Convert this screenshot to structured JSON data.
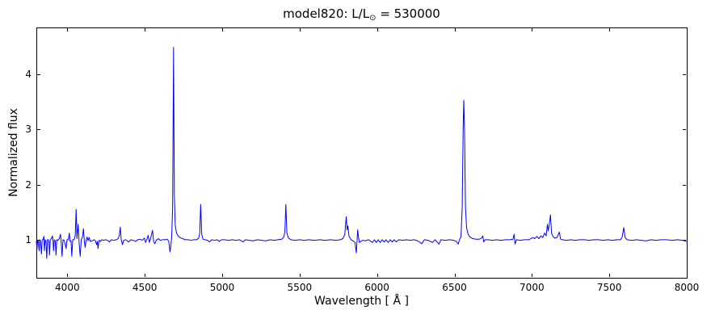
{
  "title_parts": {
    "prefix": "model820: L/L",
    "sun_symbol": "⊙",
    "suffix": " = 530000"
  },
  "chart_data": {
    "type": "line",
    "title": "model820: L/L⊙ = 530000",
    "xlabel": "Wavelength [ Å ]",
    "ylabel": "Normalized flux",
    "xlim": [
      3800,
      8000
    ],
    "ylim": [
      0.31,
      4.85
    ],
    "xticks": [
      4000,
      4500,
      5000,
      5500,
      6000,
      6500,
      7000,
      7500,
      8000
    ],
    "yticks": [
      1,
      2,
      3,
      4
    ],
    "grid": false,
    "legend": null,
    "line_color": "#0000ff",
    "axis_color": "#000000",
    "background_color": "#ffffff",
    "peaks": [
      {
        "wavelength": 4057,
        "flux": 1.55
      },
      {
        "wavelength": 4342,
        "flux": 1.23
      },
      {
        "wavelength": 4550,
        "flux": 1.17
      },
      {
        "wavelength": 4686,
        "flux": 4.49
      },
      {
        "wavelength": 4861,
        "flux": 1.64
      },
      {
        "wavelength": 5411,
        "flux": 1.64
      },
      {
        "wavelength": 5801,
        "flux": 1.42
      },
      {
        "wavelength": 5876,
        "flux": 1.18
      },
      {
        "wavelength": 6560,
        "flux": 3.53
      },
      {
        "wavelength": 6683,
        "flux": 1.07
      },
      {
        "wavelength": 7120,
        "flux": 1.45
      },
      {
        "wavelength": 7177,
        "flux": 1.14
      },
      {
        "wavelength": 7593,
        "flux": 1.22
      }
    ],
    "series": [
      {
        "name": "spectrum",
        "points": [
          [
            3800,
            0.97
          ],
          [
            3804,
            0.82
          ],
          [
            3808,
            0.98
          ],
          [
            3813,
            0.97
          ],
          [
            3818,
            0.8
          ],
          [
            3822,
            1.0
          ],
          [
            3827,
            0.97
          ],
          [
            3833,
            0.74
          ],
          [
            3838,
            1.0
          ],
          [
            3843,
            1.0
          ],
          [
            3849,
            1.06
          ],
          [
            3852,
            0.8
          ],
          [
            3857,
            1.0
          ],
          [
            3862,
            0.98
          ],
          [
            3867,
            0.66
          ],
          [
            3872,
            1.0
          ],
          [
            3877,
            1.0
          ],
          [
            3881,
            0.97
          ],
          [
            3885,
            0.72
          ],
          [
            3890,
            1.0
          ],
          [
            3897,
            1.02
          ],
          [
            3904,
            1.07
          ],
          [
            3908,
            0.97
          ],
          [
            3911,
            0.8
          ],
          [
            3916,
            1.0
          ],
          [
            3922,
            0.98
          ],
          [
            3927,
            0.72
          ],
          [
            3932,
            1.0
          ],
          [
            3940,
            0.99
          ],
          [
            3948,
            1.02
          ],
          [
            3956,
            1.1
          ],
          [
            3960,
            0.97
          ],
          [
            3966,
            0.7
          ],
          [
            3972,
            1.0
          ],
          [
            3980,
            0.99
          ],
          [
            3992,
            0.84
          ],
          [
            3998,
            1.0
          ],
          [
            4006,
            1.0
          ],
          [
            4013,
            1.12
          ],
          [
            4018,
            0.97
          ],
          [
            4024,
            0.98
          ],
          [
            4029,
            0.7
          ],
          [
            4035,
            1.0
          ],
          [
            4044,
            1.0
          ],
          [
            4051,
            1.08
          ],
          [
            4057,
            1.55
          ],
          [
            4062,
            1.02
          ],
          [
            4070,
            1.28
          ],
          [
            4076,
            0.95
          ],
          [
            4083,
            0.7
          ],
          [
            4090,
            1.0
          ],
          [
            4098,
            1.05
          ],
          [
            4104,
            1.2
          ],
          [
            4110,
            0.97
          ],
          [
            4115,
            0.86
          ],
          [
            4122,
            1.0
          ],
          [
            4128,
            1.05
          ],
          [
            4134,
            0.98
          ],
          [
            4141,
            1.04
          ],
          [
            4148,
            0.97
          ],
          [
            4160,
            0.98
          ],
          [
            4172,
            1.0
          ],
          [
            4182,
            0.98
          ],
          [
            4189,
            0.91
          ],
          [
            4194,
            0.97
          ],
          [
            4198,
            0.84
          ],
          [
            4205,
            0.99
          ],
          [
            4215,
            0.97
          ],
          [
            4222,
            1.0
          ],
          [
            4235,
            0.99
          ],
          [
            4248,
            1.0
          ],
          [
            4260,
            0.99
          ],
          [
            4272,
            0.96
          ],
          [
            4284,
            1.0
          ],
          [
            4300,
            0.99
          ],
          [
            4315,
            1.0
          ],
          [
            4328,
            1.02
          ],
          [
            4336,
            1.08
          ],
          [
            4342,
            1.23
          ],
          [
            4348,
            1.0
          ],
          [
            4356,
            0.91
          ],
          [
            4364,
            0.99
          ],
          [
            4378,
            1.0
          ],
          [
            4396,
            0.96
          ],
          [
            4410,
            1.0
          ],
          [
            4425,
            0.99
          ],
          [
            4441,
            0.97
          ],
          [
            4455,
            1.0
          ],
          [
            4470,
            1.01
          ],
          [
            4484,
            0.99
          ],
          [
            4498,
            1.03
          ],
          [
            4505,
            0.95
          ],
          [
            4513,
            1.0
          ],
          [
            4522,
            1.08
          ],
          [
            4530,
            0.95
          ],
          [
            4540,
            1.05
          ],
          [
            4550,
            1.17
          ],
          [
            4558,
            0.96
          ],
          [
            4565,
            0.93
          ],
          [
            4575,
            0.99
          ],
          [
            4588,
            1.02
          ],
          [
            4600,
            0.99
          ],
          [
            4615,
            1.0
          ],
          [
            4630,
            1.0
          ],
          [
            4645,
            1.01
          ],
          [
            4655,
            0.97
          ],
          [
            4663,
            0.78
          ],
          [
            4668,
            0.88
          ],
          [
            4674,
            1.05
          ],
          [
            4680,
            1.6
          ],
          [
            4686,
            4.49
          ],
          [
            4691,
            1.8
          ],
          [
            4697,
            1.25
          ],
          [
            4705,
            1.12
          ],
          [
            4715,
            1.07
          ],
          [
            4728,
            1.04
          ],
          [
            4744,
            1.02
          ],
          [
            4762,
            1.0
          ],
          [
            4780,
            1.0
          ],
          [
            4800,
            0.99
          ],
          [
            4818,
            1.0
          ],
          [
            4836,
            1.0
          ],
          [
            4848,
            1.03
          ],
          [
            4855,
            1.12
          ],
          [
            4861,
            1.64
          ],
          [
            4868,
            1.1
          ],
          [
            4876,
            1.01
          ],
          [
            4890,
            1.0
          ],
          [
            4905,
            0.99
          ],
          [
            4918,
            0.96
          ],
          [
            4932,
            1.0
          ],
          [
            4950,
            0.99
          ],
          [
            4968,
            1.0
          ],
          [
            4980,
            0.97
          ],
          [
            4995,
            1.0
          ],
          [
            5015,
            1.0
          ],
          [
            5040,
            0.99
          ],
          [
            5065,
            1.0
          ],
          [
            5090,
            0.99
          ],
          [
            5112,
            1.0
          ],
          [
            5135,
            0.96
          ],
          [
            5150,
            1.0
          ],
          [
            5175,
            0.99
          ],
          [
            5200,
            0.98
          ],
          [
            5228,
            1.0
          ],
          [
            5255,
            0.99
          ],
          [
            5282,
            0.98
          ],
          [
            5310,
            1.0
          ],
          [
            5335,
            0.99
          ],
          [
            5360,
            1.0
          ],
          [
            5385,
            1.01
          ],
          [
            5398,
            1.05
          ],
          [
            5405,
            1.15
          ],
          [
            5411,
            1.64
          ],
          [
            5418,
            1.12
          ],
          [
            5428,
            1.03
          ],
          [
            5445,
            1.0
          ],
          [
            5470,
            0.99
          ],
          [
            5500,
            1.0
          ],
          [
            5530,
            0.99
          ],
          [
            5560,
            1.0
          ],
          [
            5595,
            0.99
          ],
          [
            5630,
            1.0
          ],
          [
            5665,
            0.99
          ],
          [
            5700,
            1.0
          ],
          [
            5735,
            0.99
          ],
          [
            5762,
            1.0
          ],
          [
            5780,
            1.02
          ],
          [
            5792,
            1.1
          ],
          [
            5801,
            1.42
          ],
          [
            5807,
            1.18
          ],
          [
            5812,
            1.25
          ],
          [
            5819,
            1.06
          ],
          [
            5832,
            1.0
          ],
          [
            5845,
            0.98
          ],
          [
            5858,
            0.95
          ],
          [
            5866,
            0.76
          ],
          [
            5871,
            0.98
          ],
          [
            5875,
            1.18
          ],
          [
            5880,
            1.05
          ],
          [
            5886,
            0.95
          ],
          [
            5895,
            0.97
          ],
          [
            5908,
            0.99
          ],
          [
            5925,
            0.98
          ],
          [
            5945,
            1.0
          ],
          [
            5970,
            0.95
          ],
          [
            5983,
            1.0
          ],
          [
            5995,
            0.95
          ],
          [
            6008,
            1.0
          ],
          [
            6020,
            0.95
          ],
          [
            6033,
            1.0
          ],
          [
            6046,
            0.96
          ],
          [
            6058,
            1.0
          ],
          [
            6072,
            0.95
          ],
          [
            6085,
            1.0
          ],
          [
            6098,
            0.96
          ],
          [
            6110,
            1.0
          ],
          [
            6124,
            0.96
          ],
          [
            6140,
            1.0
          ],
          [
            6165,
            0.99
          ],
          [
            6190,
            1.0
          ],
          [
            6215,
            0.99
          ],
          [
            6240,
            1.0
          ],
          [
            6262,
            0.98
          ],
          [
            6290,
            0.93
          ],
          [
            6305,
            1.0
          ],
          [
            6330,
            0.99
          ],
          [
            6357,
            0.95
          ],
          [
            6375,
            1.0
          ],
          [
            6400,
            0.92
          ],
          [
            6412,
            1.0
          ],
          [
            6440,
            0.99
          ],
          [
            6468,
            1.0
          ],
          [
            6495,
            0.99
          ],
          [
            6512,
            0.97
          ],
          [
            6524,
            0.92
          ],
          [
            6532,
            1.0
          ],
          [
            6542,
            1.05
          ],
          [
            6550,
            1.6
          ],
          [
            6556,
            3.0
          ],
          [
            6560,
            3.53
          ],
          [
            6565,
            3.0
          ],
          [
            6571,
            1.6
          ],
          [
            6578,
            1.22
          ],
          [
            6588,
            1.1
          ],
          [
            6600,
            1.05
          ],
          [
            6618,
            1.02
          ],
          [
            6640,
            1.01
          ],
          [
            6660,
            1.01
          ],
          [
            6675,
            1.03
          ],
          [
            6683,
            1.07
          ],
          [
            6689,
            0.96
          ],
          [
            6698,
            1.0
          ],
          [
            6720,
            1.0
          ],
          [
            6745,
            0.99
          ],
          [
            6772,
            1.0
          ],
          [
            6800,
            0.99
          ],
          [
            6830,
            1.0
          ],
          [
            6858,
            1.0
          ],
          [
            6878,
            1.01
          ],
          [
            6885,
            1.1
          ],
          [
            6891,
            0.92
          ],
          [
            6900,
            1.0
          ],
          [
            6925,
            0.99
          ],
          [
            6952,
            1.0
          ],
          [
            6980,
            1.0
          ],
          [
            7005,
            1.04
          ],
          [
            7018,
            1.02
          ],
          [
            7032,
            1.06
          ],
          [
            7045,
            1.02
          ],
          [
            7058,
            1.07
          ],
          [
            7070,
            1.04
          ],
          [
            7082,
            1.12
          ],
          [
            7092,
            1.07
          ],
          [
            7100,
            1.28
          ],
          [
            7106,
            1.16
          ],
          [
            7113,
            1.3
          ],
          [
            7120,
            1.45
          ],
          [
            7127,
            1.12
          ],
          [
            7136,
            1.06
          ],
          [
            7148,
            1.03
          ],
          [
            7162,
            1.04
          ],
          [
            7177,
            1.14
          ],
          [
            7185,
            1.01
          ],
          [
            7198,
            1.0
          ],
          [
            7225,
            0.99
          ],
          [
            7252,
            1.0
          ],
          [
            7280,
            0.99
          ],
          [
            7310,
            1.0
          ],
          [
            7340,
            1.0
          ],
          [
            7370,
            0.99
          ],
          [
            7400,
            1.0
          ],
          [
            7430,
            1.0
          ],
          [
            7460,
            0.99
          ],
          [
            7490,
            1.0
          ],
          [
            7520,
            0.99
          ],
          [
            7548,
            1.0
          ],
          [
            7572,
            1.0
          ],
          [
            7583,
            1.05
          ],
          [
            7593,
            1.22
          ],
          [
            7602,
            1.04
          ],
          [
            7615,
            1.0
          ],
          [
            7645,
            0.99
          ],
          [
            7675,
            1.0
          ],
          [
            7705,
            0.99
          ],
          [
            7738,
            0.98
          ],
          [
            7770,
            1.0
          ],
          [
            7800,
            0.99
          ],
          [
            7835,
            1.0
          ],
          [
            7870,
            1.0
          ],
          [
            7905,
            0.99
          ],
          [
            7940,
            1.0
          ],
          [
            7970,
            0.99
          ],
          [
            8000,
            0.97
          ]
        ]
      }
    ]
  }
}
